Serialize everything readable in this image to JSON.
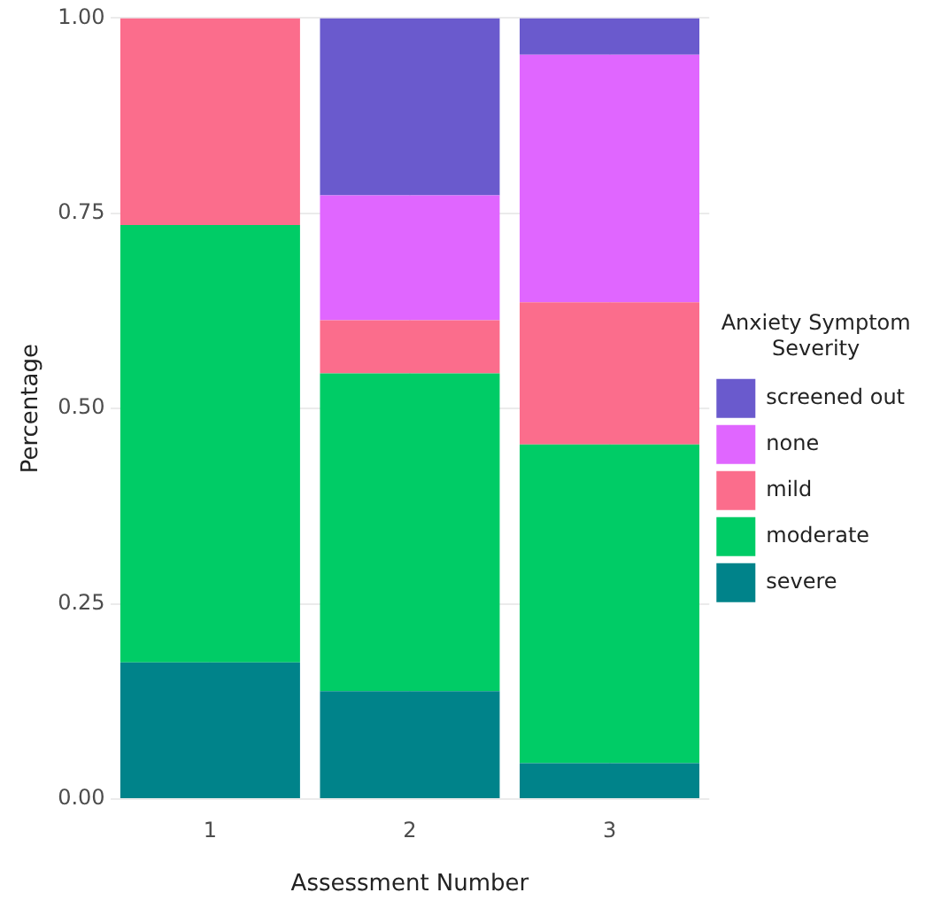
{
  "chart_data": {
    "type": "bar",
    "stacked": true,
    "xlabel": "Assessment Number",
    "ylabel": "Percentage",
    "legend_title": "Anxiety Symptom Severity",
    "legend": "right",
    "grid": true,
    "categories": [
      "1",
      "2",
      "3"
    ],
    "ylim": [
      0,
      1
    ],
    "yticks": [
      {
        "value": 0,
        "label": "0.00"
      },
      {
        "value": 0.25,
        "label": "0.25"
      },
      {
        "value": 0.5,
        "label": "0.50"
      },
      {
        "value": 0.75,
        "label": "0.75"
      },
      {
        "value": 1,
        "label": "1.00"
      }
    ],
    "series": [
      {
        "name": "severe",
        "color": "#00838a",
        "values": [
          0.175,
          0.138,
          0.046
        ]
      },
      {
        "name": "moderate",
        "color": "#00cc66",
        "values": [
          0.56,
          0.407,
          0.408
        ]
      },
      {
        "name": "mild",
        "color": "#fb6d8c",
        "values": [
          0.265,
          0.068,
          0.182
        ]
      },
      {
        "name": "none",
        "color": "#e066ff",
        "values": [
          null,
          0.16,
          0.317
        ]
      },
      {
        "name": "screened out",
        "color": "#6a5acd",
        "values": [
          null,
          0.227,
          0.047
        ]
      }
    ]
  }
}
